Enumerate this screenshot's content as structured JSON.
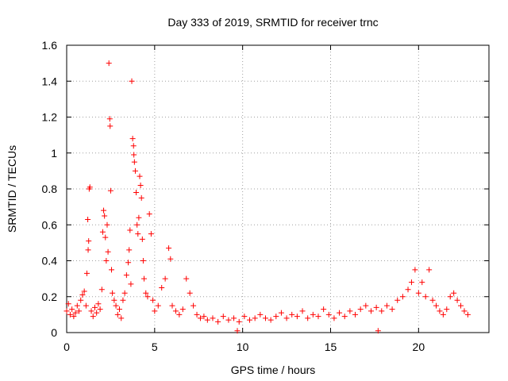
{
  "chart_data": {
    "type": "scatter",
    "title": "Day 333 of 2019, SRMTID for receiver trnc",
    "xlabel": "GPS time / hours",
    "ylabel": "SRMTID / TECUs",
    "xlim": [
      0,
      24
    ],
    "ylim": [
      0,
      1.6
    ],
    "xticks": [
      0,
      5,
      10,
      15,
      20
    ],
    "xtick_labels": [
      "0",
      "5",
      "10",
      "15",
      "20"
    ],
    "yticks": [
      0,
      0.2,
      0.4,
      0.6,
      0.8,
      1.0,
      1.2,
      1.4,
      1.6
    ],
    "ytick_labels": [
      "0",
      "0.2",
      "0.4",
      "0.6",
      "0.8",
      "1",
      "1.2",
      "1.4",
      "1.6"
    ],
    "grid": true,
    "marker": "+",
    "series": [
      {
        "name": "SRMTID",
        "color": "#ff0000",
        "points": [
          [
            0.0,
            0.12
          ],
          [
            0.1,
            0.16
          ],
          [
            0.2,
            0.1
          ],
          [
            0.3,
            0.13
          ],
          [
            0.4,
            0.09
          ],
          [
            0.5,
            0.11
          ],
          [
            0.6,
            0.15
          ],
          [
            0.7,
            0.12
          ],
          [
            0.8,
            0.18
          ],
          [
            0.9,
            0.21
          ],
          [
            1.0,
            0.23
          ],
          [
            1.1,
            0.15
          ],
          [
            1.15,
            0.33
          ],
          [
            1.2,
            0.63
          ],
          [
            1.22,
            0.46
          ],
          [
            1.25,
            0.51
          ],
          [
            1.28,
            0.8
          ],
          [
            1.32,
            0.81
          ],
          [
            1.4,
            0.12
          ],
          [
            1.5,
            0.09
          ],
          [
            1.6,
            0.14
          ],
          [
            1.7,
            0.11
          ],
          [
            1.8,
            0.16
          ],
          [
            1.9,
            0.13
          ],
          [
            2.0,
            0.24
          ],
          [
            2.05,
            0.56
          ],
          [
            2.1,
            0.68
          ],
          [
            2.15,
            0.65
          ],
          [
            2.2,
            0.53
          ],
          [
            2.25,
            0.4
          ],
          [
            2.3,
            0.6
          ],
          [
            2.35,
            0.45
          ],
          [
            2.4,
            1.5
          ],
          [
            2.45,
            1.19
          ],
          [
            2.47,
            1.15
          ],
          [
            2.5,
            0.79
          ],
          [
            2.55,
            0.35
          ],
          [
            2.6,
            0.22
          ],
          [
            2.7,
            0.18
          ],
          [
            2.8,
            0.15
          ],
          [
            2.9,
            0.1
          ],
          [
            3.0,
            0.13
          ],
          [
            3.1,
            0.08
          ],
          [
            3.2,
            0.18
          ],
          [
            3.3,
            0.22
          ],
          [
            3.4,
            0.32
          ],
          [
            3.5,
            0.39
          ],
          [
            3.55,
            0.46
          ],
          [
            3.6,
            0.57
          ],
          [
            3.65,
            0.27
          ],
          [
            3.7,
            1.4
          ],
          [
            3.75,
            1.08
          ],
          [
            3.8,
            1.04
          ],
          [
            3.82,
            0.99
          ],
          [
            3.85,
            0.95
          ],
          [
            3.9,
            0.9
          ],
          [
            3.95,
            0.78
          ],
          [
            4.0,
            0.6
          ],
          [
            4.05,
            0.55
          ],
          [
            4.1,
            0.64
          ],
          [
            4.15,
            0.87
          ],
          [
            4.2,
            0.82
          ],
          [
            4.25,
            0.75
          ],
          [
            4.3,
            0.52
          ],
          [
            4.35,
            0.4
          ],
          [
            4.4,
            0.3
          ],
          [
            4.5,
            0.22
          ],
          [
            4.6,
            0.2
          ],
          [
            4.7,
            0.66
          ],
          [
            4.8,
            0.55
          ],
          [
            4.9,
            0.18
          ],
          [
            5.0,
            0.12
          ],
          [
            5.2,
            0.15
          ],
          [
            5.4,
            0.25
          ],
          [
            5.6,
            0.3
          ],
          [
            5.8,
            0.47
          ],
          [
            5.9,
            0.41
          ],
          [
            6.0,
            0.15
          ],
          [
            6.2,
            0.12
          ],
          [
            6.4,
            0.1
          ],
          [
            6.6,
            0.13
          ],
          [
            6.8,
            0.3
          ],
          [
            7.0,
            0.22
          ],
          [
            7.2,
            0.15
          ],
          [
            7.4,
            0.1
          ],
          [
            7.6,
            0.08
          ],
          [
            7.8,
            0.09
          ],
          [
            8.0,
            0.07
          ],
          [
            8.3,
            0.08
          ],
          [
            8.6,
            0.06
          ],
          [
            8.9,
            0.09
          ],
          [
            9.2,
            0.07
          ],
          [
            9.5,
            0.08
          ],
          [
            9.7,
            0.01
          ],
          [
            9.8,
            0.06
          ],
          [
            10.1,
            0.09
          ],
          [
            10.4,
            0.07
          ],
          [
            10.7,
            0.08
          ],
          [
            11.0,
            0.1
          ],
          [
            11.3,
            0.08
          ],
          [
            11.6,
            0.07
          ],
          [
            11.9,
            0.09
          ],
          [
            12.2,
            0.11
          ],
          [
            12.5,
            0.08
          ],
          [
            12.8,
            0.1
          ],
          [
            13.1,
            0.09
          ],
          [
            13.4,
            0.12
          ],
          [
            13.7,
            0.08
          ],
          [
            14.0,
            0.1
          ],
          [
            14.3,
            0.09
          ],
          [
            14.6,
            0.13
          ],
          [
            14.9,
            0.1
          ],
          [
            15.2,
            0.08
          ],
          [
            15.5,
            0.11
          ],
          [
            15.8,
            0.09
          ],
          [
            16.1,
            0.12
          ],
          [
            16.4,
            0.1
          ],
          [
            16.7,
            0.13
          ],
          [
            17.0,
            0.15
          ],
          [
            17.3,
            0.12
          ],
          [
            17.6,
            0.14
          ],
          [
            17.7,
            0.01
          ],
          [
            17.9,
            0.12
          ],
          [
            18.2,
            0.15
          ],
          [
            18.5,
            0.13
          ],
          [
            18.8,
            0.18
          ],
          [
            19.1,
            0.2
          ],
          [
            19.4,
            0.24
          ],
          [
            19.6,
            0.28
          ],
          [
            19.8,
            0.35
          ],
          [
            20.0,
            0.22
          ],
          [
            20.2,
            0.28
          ],
          [
            20.4,
            0.2
          ],
          [
            20.6,
            0.35
          ],
          [
            20.8,
            0.18
          ],
          [
            21.0,
            0.15
          ],
          [
            21.2,
            0.12
          ],
          [
            21.4,
            0.1
          ],
          [
            21.6,
            0.13
          ],
          [
            21.8,
            0.2
          ],
          [
            22.0,
            0.22
          ],
          [
            22.2,
            0.18
          ],
          [
            22.4,
            0.15
          ],
          [
            22.6,
            0.12
          ],
          [
            22.8,
            0.1
          ]
        ]
      }
    ]
  }
}
